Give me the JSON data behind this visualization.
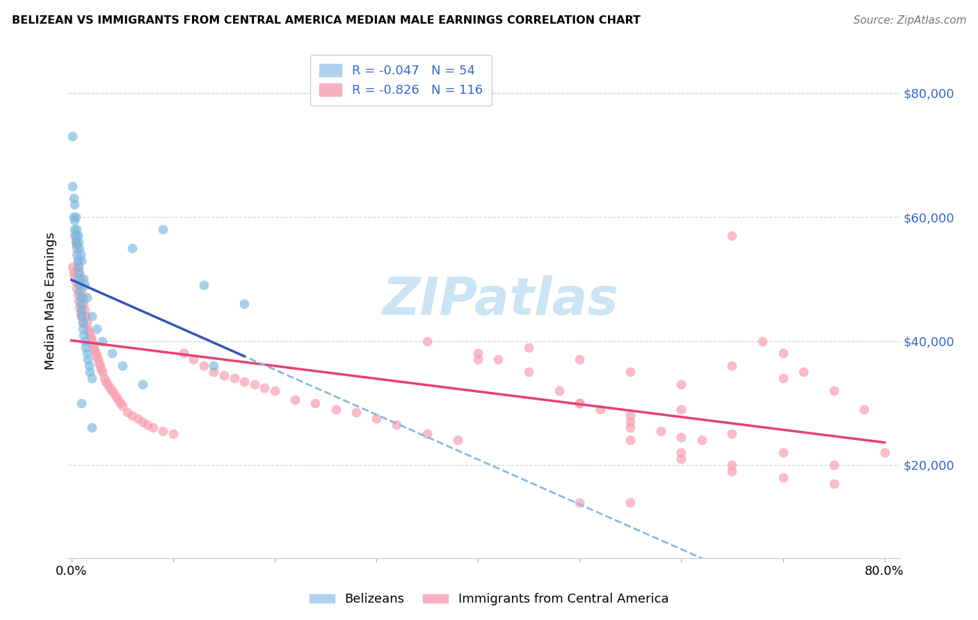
{
  "title": "BELIZEAN VS IMMIGRANTS FROM CENTRAL AMERICA MEDIAN MALE EARNINGS CORRELATION CHART",
  "source": "Source: ZipAtlas.com",
  "ylabel": "Median Male Earnings",
  "xlim": [
    -0.003,
    0.815
  ],
  "ylim": [
    5000,
    88000
  ],
  "xtick_positions": [
    0.0,
    0.1,
    0.2,
    0.3,
    0.4,
    0.5,
    0.6,
    0.7,
    0.8
  ],
  "ytick_values": [
    20000,
    40000,
    60000,
    80000
  ],
  "ytick_labels": [
    "$20,000",
    "$40,000",
    "$60,000",
    "$80,000"
  ],
  "belizean_color": "#7ab8e0",
  "immigrant_color": "#f9a0b0",
  "blue_line_color": "#3355bb",
  "pink_line_color": "#e84070",
  "dashed_line_color": "#88b8e0",
  "watermark_color": "#cce5f5",
  "legend_color": "#3366cc",
  "grid_color": "#c8d8e8",
  "R_belizean": -0.047,
  "N_belizean": 54,
  "R_immigrant": -0.826,
  "N_immigrant": 116,
  "legend_label1": "Belizeans",
  "legend_label2": "Immigrants from Central America",
  "belizean_x": [
    0.001,
    0.001,
    0.002,
    0.002,
    0.003,
    0.003,
    0.004,
    0.004,
    0.005,
    0.005,
    0.006,
    0.006,
    0.007,
    0.007,
    0.008,
    0.008,
    0.009,
    0.009,
    0.01,
    0.01,
    0.011,
    0.011,
    0.012,
    0.013,
    0.014,
    0.015,
    0.016,
    0.017,
    0.018,
    0.02,
    0.003,
    0.004,
    0.005,
    0.006,
    0.007,
    0.008,
    0.009,
    0.01,
    0.012,
    0.013,
    0.015,
    0.02,
    0.025,
    0.03,
    0.04,
    0.05,
    0.06,
    0.09,
    0.13,
    0.17,
    0.01,
    0.02,
    0.07,
    0.14
  ],
  "belizean_y": [
    73000,
    65000,
    63000,
    60000,
    59500,
    58000,
    57000,
    56000,
    55500,
    54000,
    53000,
    52000,
    51000,
    50000,
    49000,
    48000,
    47000,
    46000,
    45000,
    44000,
    43000,
    42000,
    41000,
    40000,
    39000,
    38000,
    37000,
    36000,
    35000,
    34000,
    62000,
    60000,
    58000,
    57000,
    56000,
    55000,
    54000,
    53000,
    50000,
    49000,
    47000,
    44000,
    42000,
    40000,
    38000,
    36000,
    55000,
    58000,
    49000,
    46000,
    30000,
    26000,
    33000,
    36000
  ],
  "immigrant_x": [
    0.001,
    0.002,
    0.003,
    0.003,
    0.004,
    0.004,
    0.005,
    0.005,
    0.006,
    0.006,
    0.007,
    0.007,
    0.008,
    0.008,
    0.009,
    0.009,
    0.01,
    0.01,
    0.011,
    0.011,
    0.012,
    0.013,
    0.014,
    0.015,
    0.016,
    0.017,
    0.018,
    0.019,
    0.02,
    0.021,
    0.022,
    0.023,
    0.024,
    0.025,
    0.026,
    0.027,
    0.028,
    0.029,
    0.03,
    0.032,
    0.034,
    0.036,
    0.038,
    0.04,
    0.042,
    0.044,
    0.046,
    0.048,
    0.05,
    0.055,
    0.06,
    0.065,
    0.07,
    0.075,
    0.08,
    0.09,
    0.1,
    0.11,
    0.12,
    0.13,
    0.14,
    0.15,
    0.16,
    0.17,
    0.18,
    0.19,
    0.2,
    0.22,
    0.24,
    0.26,
    0.28,
    0.3,
    0.32,
    0.35,
    0.38,
    0.4,
    0.42,
    0.45,
    0.48,
    0.5,
    0.52,
    0.55,
    0.58,
    0.6,
    0.62,
    0.65,
    0.68,
    0.7,
    0.72,
    0.75,
    0.78,
    0.8,
    0.45,
    0.5,
    0.55,
    0.6,
    0.65,
    0.7,
    0.35,
    0.4,
    0.5,
    0.55,
    0.6,
    0.65,
    0.7,
    0.75,
    0.55,
    0.6,
    0.65,
    0.7,
    0.5,
    0.55,
    0.6,
    0.65,
    0.55,
    0.75
  ],
  "immigrant_y": [
    52000,
    51000,
    50500,
    57000,
    56000,
    49500,
    48500,
    55000,
    47500,
    53000,
    52000,
    46500,
    51000,
    45500,
    50000,
    44500,
    48000,
    44000,
    47000,
    43000,
    46000,
    45000,
    44000,
    43000,
    42000,
    41500,
    41000,
    40500,
    40000,
    39500,
    39000,
    38500,
    38000,
    37500,
    37000,
    36500,
    36000,
    35500,
    35000,
    34000,
    33500,
    33000,
    32500,
    32000,
    31500,
    31000,
    30500,
    30000,
    29500,
    28500,
    28000,
    27500,
    27000,
    26500,
    26000,
    25500,
    25000,
    38000,
    37000,
    36000,
    35000,
    34500,
    34000,
    33500,
    33000,
    32500,
    32000,
    30500,
    30000,
    29000,
    28500,
    27500,
    26500,
    25000,
    24000,
    38000,
    37000,
    35000,
    32000,
    30000,
    29000,
    27000,
    25500,
    24500,
    24000,
    57000,
    40000,
    38000,
    35000,
    32000,
    29000,
    22000,
    39000,
    37000,
    35000,
    33000,
    36000,
    34000,
    40000,
    37000,
    30000,
    26000,
    29000,
    25000,
    22000,
    20000,
    24000,
    22000,
    20000,
    18000,
    14000,
    14000,
    21000,
    19000,
    28000,
    17000
  ]
}
